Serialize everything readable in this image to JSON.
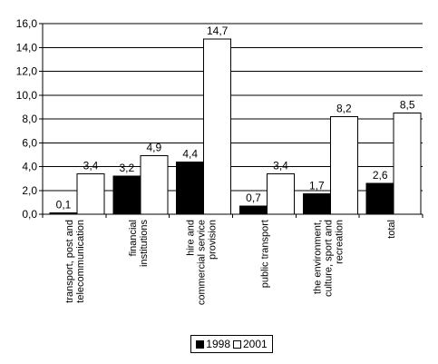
{
  "chart_data": {
    "type": "bar",
    "title": "",
    "xlabel": "",
    "ylabel": "",
    "ylim": [
      0,
      16
    ],
    "yticks": [
      "0,0",
      "2,0",
      "4,0",
      "6,0",
      "8,0",
      "10,0",
      "12,0",
      "14,0",
      "16,0"
    ],
    "grid": true,
    "legend_position": "bottom",
    "categories": [
      [
        "transport, post and",
        "telecommunication"
      ],
      [
        "financial",
        "institutions"
      ],
      [
        "hire and",
        "commercial service",
        "provision"
      ],
      [
        "public transport"
      ],
      [
        "the environment,",
        "culture, sport and",
        "recreation"
      ],
      [
        "total"
      ]
    ],
    "series": [
      {
        "name": "1998",
        "color": "#000000",
        "values": [
          0.1,
          3.2,
          4.4,
          0.7,
          1.7,
          2.6
        ],
        "labels": [
          "0,1",
          "3,2",
          "4,4",
          "0,7",
          "1,7",
          "2,6"
        ]
      },
      {
        "name": "2001",
        "color": "#ffffff",
        "values": [
          3.4,
          4.9,
          14.7,
          3.4,
          8.2,
          8.5
        ],
        "labels": [
          "3,4",
          "4,9",
          "14,7",
          "3,4",
          "8,2",
          "8,5"
        ]
      }
    ]
  }
}
